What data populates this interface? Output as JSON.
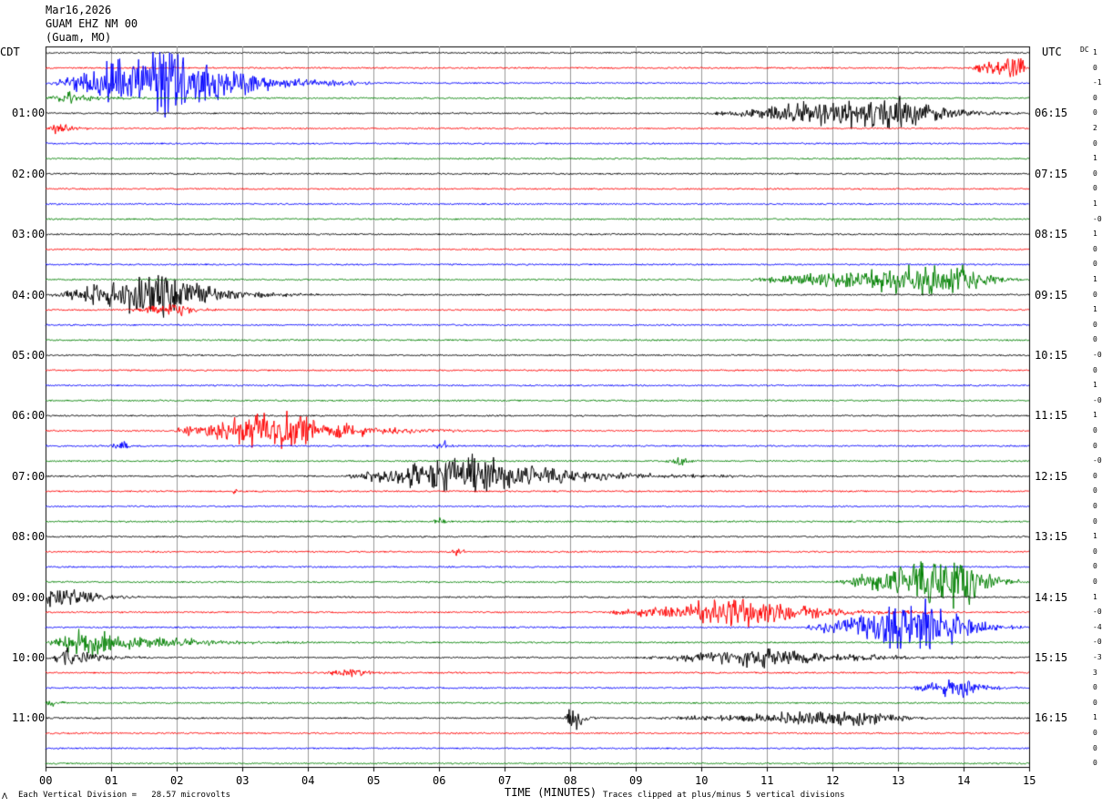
{
  "header": {
    "date": "Mar16,2026",
    "station": "GUAM EHZ NM 00",
    "location": "(Guam, MO)"
  },
  "labels": {
    "left_tz": "CDT",
    "right_tz": "UTC",
    "dc": "DC"
  },
  "footer": {
    "scale_note": "Each Vertical Division =   28.57 microvolts",
    "clip_note": "Traces clipped at plus/minus 5 vertical divisions",
    "corner_mark": "ⴷ"
  },
  "chart_data": {
    "type": "line",
    "xlabel": "TIME (MINUTES)",
    "xlim": [
      0,
      15
    ],
    "x_ticks": [
      "00",
      "01",
      "02",
      "03",
      "04",
      "05",
      "06",
      "07",
      "08",
      "09",
      "10",
      "11",
      "12",
      "13",
      "14",
      "15"
    ],
    "minutes_per_line": 15,
    "line_count": 48,
    "line_colors": [
      "#000000",
      "#ff0000",
      "#0000ff",
      "#008000"
    ],
    "left_hour_labels": [
      "01:00",
      "02:00",
      "03:00",
      "04:00",
      "05:00",
      "06:00",
      "07:00",
      "08:00",
      "09:00",
      "10:00",
      "11:00"
    ],
    "right_hour_labels": [
      "06:15",
      "07:15",
      "08:15",
      "09:15",
      "10:15",
      "11:15",
      "12:15",
      "13:15",
      "14:15",
      "15:15",
      "16:15"
    ],
    "dc_offsets": [
      "1",
      "0",
      "-1",
      "0",
      "0",
      "2",
      "0",
      "1",
      "0",
      "0",
      "1",
      "-0",
      "1",
      "0",
      "0",
      "1",
      "0",
      "1",
      "0",
      "0",
      "-0",
      "0",
      "1",
      "-0",
      "1",
      "0",
      "0",
      "-0",
      "0",
      "0",
      "0",
      "0",
      "1",
      "0",
      "0",
      "0",
      "1",
      "-0",
      "-4",
      "-0",
      "-3",
      "3",
      "0",
      "0",
      "1",
      "0",
      "0",
      "0"
    ],
    "events": [
      {
        "line": 1,
        "start": 14.0,
        "peak": 14.9,
        "end": 15.0,
        "amp": 2.2
      },
      {
        "line": 2,
        "start": 0.0,
        "peak": 1.8,
        "end": 5.0,
        "amp": 6.5
      },
      {
        "line": 3,
        "start": 0.0,
        "peak": 0.3,
        "end": 1.8,
        "amp": 1.2
      },
      {
        "line": 4,
        "start": 10.0,
        "peak": 13.0,
        "end": 15.0,
        "amp": 3.2
      },
      {
        "line": 5,
        "start": 0.0,
        "peak": 0.2,
        "end": 1.0,
        "amp": 1.0
      },
      {
        "line": 15,
        "start": 10.5,
        "peak": 14.0,
        "end": 15.0,
        "amp": 3.0
      },
      {
        "line": 16,
        "start": 0.0,
        "peak": 1.8,
        "end": 4.2,
        "amp": 3.8
      },
      {
        "line": 17,
        "start": 1.2,
        "peak": 2.0,
        "end": 2.8,
        "amp": 1.3
      },
      {
        "line": 25,
        "start": 1.8,
        "peak": 3.5,
        "end": 6.5,
        "amp": 3.8
      },
      {
        "line": 26,
        "start": 0.9,
        "peak": 1.2,
        "end": 1.5,
        "amp": 0.8
      },
      {
        "line": 26,
        "start": 5.8,
        "peak": 6.1,
        "end": 6.4,
        "amp": 0.8
      },
      {
        "line": 27,
        "start": 9.4,
        "peak": 9.7,
        "end": 10.0,
        "amp": 1.2
      },
      {
        "line": 28,
        "start": 4.5,
        "peak": 6.5,
        "end": 10.5,
        "amp": 3.6
      },
      {
        "line": 29,
        "start": 2.8,
        "peak": 2.9,
        "end": 3.0,
        "amp": 0.6
      },
      {
        "line": 31,
        "start": 5.9,
        "peak": 6.0,
        "end": 6.2,
        "amp": 1.2
      },
      {
        "line": 33,
        "start": 6.1,
        "peak": 6.3,
        "end": 6.5,
        "amp": 0.9
      },
      {
        "line": 35,
        "start": 12.0,
        "peak": 14.0,
        "end": 15.0,
        "amp": 5.0
      },
      {
        "line": 36,
        "start": 0.0,
        "peak": 0.1,
        "end": 1.5,
        "amp": 2.8
      },
      {
        "line": 37,
        "start": 8.3,
        "peak": 10.8,
        "end": 13.8,
        "amp": 2.6
      },
      {
        "line": 38,
        "start": 11.5,
        "peak": 13.5,
        "end": 15.0,
        "amp": 5.0
      },
      {
        "line": 39,
        "start": 0.0,
        "peak": 0.5,
        "end": 4.0,
        "amp": 2.6
      },
      {
        "line": 40,
        "start": 0.0,
        "peak": 0.3,
        "end": 1.8,
        "amp": 1.6
      },
      {
        "line": 40,
        "start": 9.0,
        "peak": 11.0,
        "end": 15.0,
        "amp": 1.6
      },
      {
        "line": 41,
        "start": 4.2,
        "peak": 4.7,
        "end": 5.4,
        "amp": 1.0
      },
      {
        "line": 42,
        "start": 13.0,
        "peak": 14.0,
        "end": 15.0,
        "amp": 1.8
      },
      {
        "line": 43,
        "start": 0.0,
        "peak": 0.1,
        "end": 0.4,
        "amp": 1.0
      },
      {
        "line": 44,
        "start": 7.9,
        "peak": 8.05,
        "end": 8.5,
        "amp": 3.0
      },
      {
        "line": 44,
        "start": 9.0,
        "peak": 12.5,
        "end": 14.0,
        "amp": 1.4
      }
    ]
  }
}
